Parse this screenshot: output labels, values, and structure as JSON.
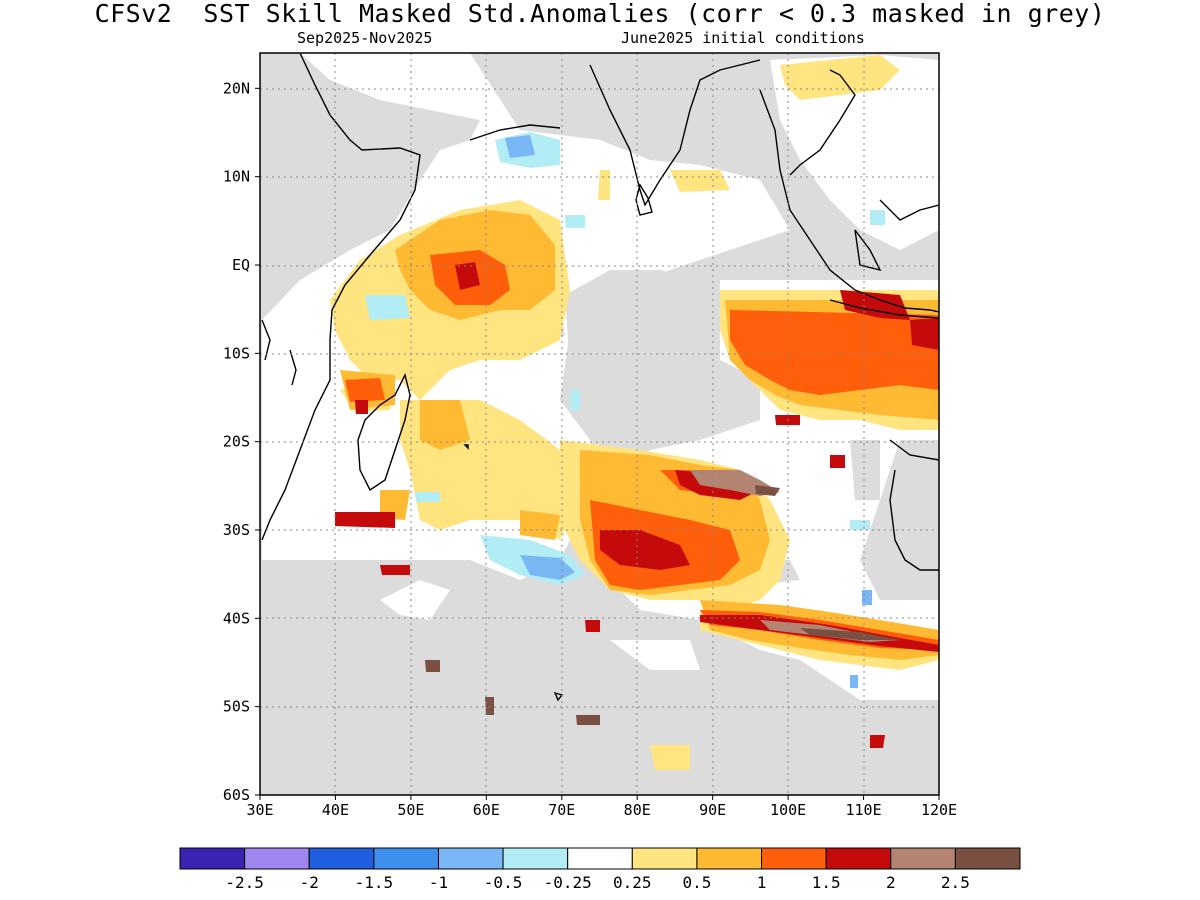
{
  "title": "CFSv2  SST Skill Masked Std.Anomalies (corr < 0.3 masked in grey)",
  "subtitle_left": "Sep2025-Nov2025",
  "subtitle_right": "June2025 initial conditions",
  "map": {
    "lon_range": [
      30,
      120
    ],
    "lat_range": [
      -60,
      24
    ],
    "lon_ticks": [
      "30E",
      "40E",
      "50E",
      "60E",
      "70E",
      "80E",
      "90E",
      "100E",
      "110E",
      "120E"
    ],
    "lat_ticks": [
      "20N",
      "10N",
      "EQ",
      "10S",
      "20S",
      "30S",
      "40S",
      "50S",
      "60S"
    ],
    "grid": "dotted",
    "mask_color": "#dcdcdc",
    "land_outline_color": "#000000"
  },
  "colorbar": {
    "colors": [
      "#3b22b3",
      "#9f85ee",
      "#1f5fe0",
      "#3f8fef",
      "#79b6f4",
      "#b2ecf5",
      "#ffffff",
      "#ffe480",
      "#ffba33",
      "#ff5f0a",
      "#c40a0a",
      "#b48472",
      "#7a5043"
    ],
    "labels": [
      "-2.5",
      "-2",
      "-1.5",
      "-1",
      "-0.5",
      "-0.25",
      "0.25",
      "0.5",
      "1",
      "1.5",
      "2",
      "2.5"
    ]
  }
}
